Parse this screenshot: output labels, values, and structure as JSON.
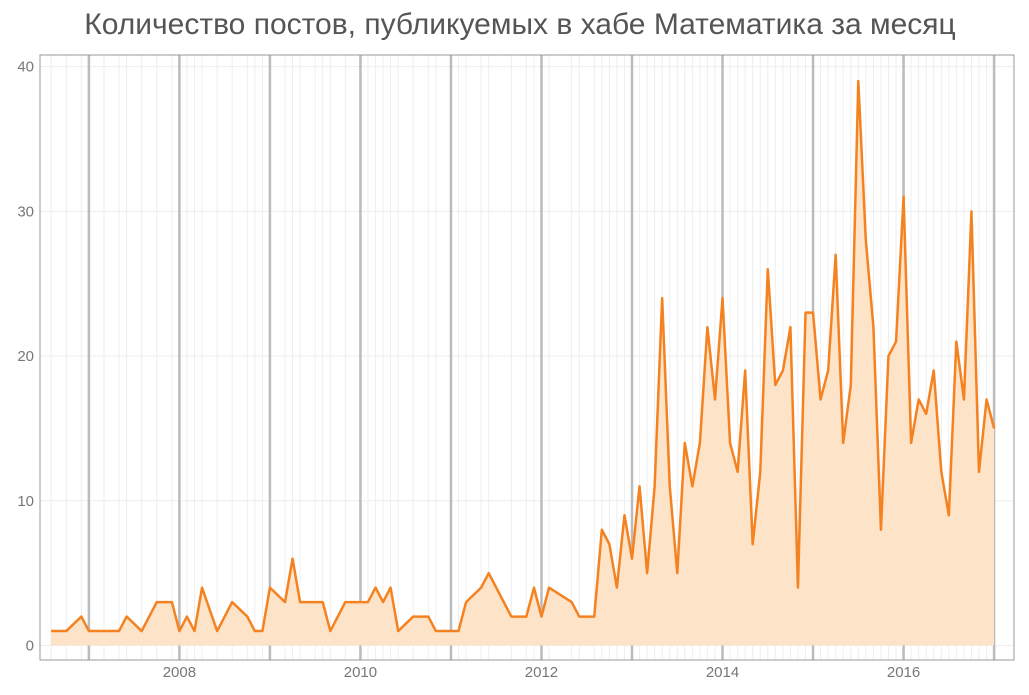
{
  "chart_data": {
    "type": "area-line",
    "title": "Количество постов, публикуемых в хабе Математика за месяц",
    "color": "#f58220",
    "fill_color": "#fde3c8",
    "x": [
      2006.583,
      2006.75,
      2006.917,
      2007,
      2007.167,
      2007.333,
      2007.417,
      2007.583,
      2007.75,
      2007.917,
      2008,
      2008.083,
      2008.167,
      2008.25,
      2008.417,
      2008.583,
      2008.75,
      2008.833,
      2008.917,
      2009,
      2009.167,
      2009.25,
      2009.333,
      2009.5,
      2009.583,
      2009.667,
      2009.833,
      2010,
      2010.083,
      2010.167,
      2010.25,
      2010.333,
      2010.417,
      2010.583,
      2010.75,
      2010.833,
      2011,
      2011.083,
      2011.167,
      2011.333,
      2011.417,
      2011.667,
      2011.833,
      2011.917,
      2012,
      2012.083,
      2012.333,
      2012.417,
      2012.583,
      2012.667,
      2012.75,
      2012.833,
      2012.917,
      2013,
      2013.083,
      2013.167,
      2013.25,
      2013.333,
      2013.417,
      2013.5,
      2013.583,
      2013.667,
      2013.75,
      2013.833,
      2013.917,
      2014,
      2014.083,
      2014.167,
      2014.25,
      2014.333,
      2014.417,
      2014.5,
      2014.583,
      2014.667,
      2014.75,
      2014.833,
      2014.917,
      2015,
      2015.083,
      2015.167,
      2015.25,
      2015.333,
      2015.417,
      2015.5,
      2015.583,
      2015.667,
      2015.75,
      2015.833,
      2015.917,
      2016,
      2016.083,
      2016.167,
      2016.25,
      2016.333,
      2016.417,
      2016.5,
      2016.583,
      2016.667,
      2016.75,
      2016.833,
      2016.917,
      2017
    ],
    "values": [
      1,
      1,
      2,
      1,
      1,
      1,
      2,
      1,
      3,
      3,
      1,
      2,
      1,
      4,
      1,
      3,
      2,
      1,
      1,
      4,
      3,
      6,
      3,
      3,
      3,
      1,
      3,
      3,
      3,
      4,
      3,
      4,
      1,
      2,
      2,
      1,
      1,
      1,
      3,
      4,
      5,
      2,
      2,
      4,
      2,
      4,
      3,
      2,
      2,
      8,
      7,
      4,
      9,
      6,
      11,
      5,
      11,
      24,
      11,
      5,
      14,
      11,
      14,
      22,
      17,
      24,
      14,
      12,
      19,
      7,
      12,
      26,
      18,
      19,
      22,
      4,
      23,
      23,
      17,
      19,
      27,
      14,
      18,
      39,
      28,
      22,
      8,
      20,
      21,
      31,
      14,
      17,
      16,
      19,
      12,
      9,
      21,
      17,
      30,
      12,
      17,
      15
    ],
    "xlim": [
      2006.46,
      2017.22
    ],
    "ylim": [
      -1,
      40.8
    ],
    "xticks": [
      2008,
      2010,
      2012,
      2014,
      2016
    ],
    "xgrid": [
      2007,
      2008,
      2009,
      2010,
      2011,
      2012,
      2013,
      2014,
      2015,
      2016,
      2017
    ],
    "yticks": [
      0,
      10,
      20,
      30,
      40
    ]
  }
}
